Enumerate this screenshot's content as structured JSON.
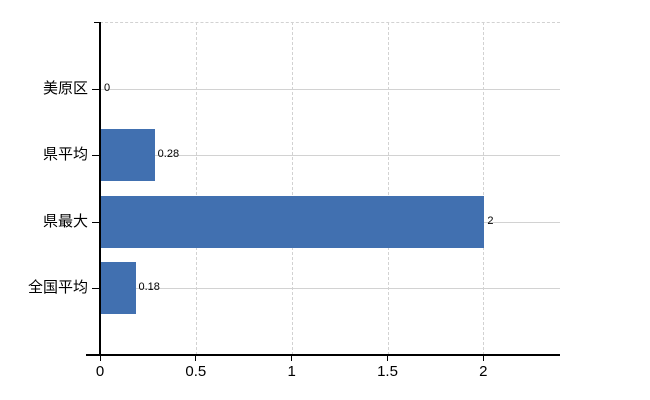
{
  "chart_data": {
    "type": "bar",
    "orientation": "horizontal",
    "title": "",
    "xlabel": "",
    "ylabel": "",
    "categories": [
      "美原区",
      "県平均",
      "県最大",
      "全国平均"
    ],
    "values": [
      0,
      0.28,
      2,
      0.18
    ],
    "value_labels": [
      "0",
      "0.28",
      "2",
      "0.18"
    ],
    "xlim": [
      0,
      2.4
    ],
    "x_ticks": [
      0,
      0.5,
      1,
      1.5,
      2
    ],
    "x_tick_labels": [
      "0",
      "0.5",
      "1",
      "1.5",
      "2"
    ],
    "grid": true,
    "legend": false,
    "colors": {
      "bar": "#4170b0",
      "grid": "#d2d2d2",
      "axis": "#000000",
      "text": "#000000",
      "background": "#ffffff"
    }
  }
}
